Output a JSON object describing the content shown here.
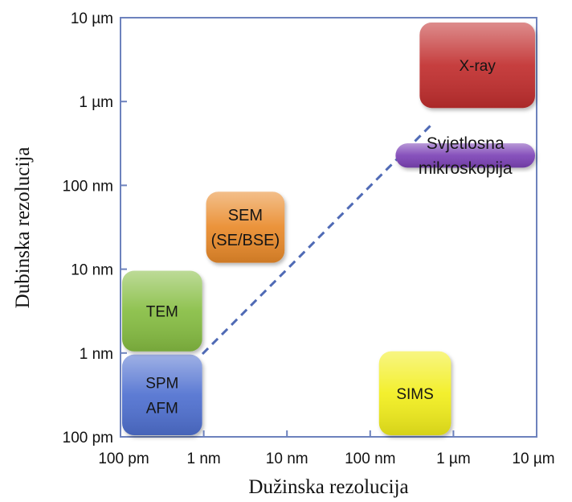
{
  "axes": {
    "x_label": "Dužinska rezolucija",
    "y_label": "Dubinska rezolucija",
    "x_ticks": [
      "100 pm",
      "1 nm",
      "10 nm",
      "100 nm",
      "1 µm",
      "10 µm"
    ],
    "y_ticks": [
      "100 pm",
      "1 nm",
      "10 nm",
      "100 nm",
      "1 µm",
      "10 µm"
    ],
    "scale": "log"
  },
  "techniques": [
    {
      "id": "spm-afm",
      "lines": [
        "SPM",
        "AFM"
      ],
      "x_range": [
        "100 pm",
        "1 nm"
      ],
      "y_range": [
        "100 pm",
        "1 nm"
      ],
      "color": "#4f6fd0"
    },
    {
      "id": "tem",
      "lines": [
        "TEM"
      ],
      "x_range": [
        "100 pm",
        "1 nm"
      ],
      "y_range": [
        "1 nm",
        "10 nm"
      ],
      "color": "#86bd42"
    },
    {
      "id": "sem",
      "lines": [
        "SEM",
        "(SE/BSE)"
      ],
      "x_range": [
        "1 nm",
        "10 nm"
      ],
      "y_range": [
        "10 nm",
        "100 nm"
      ],
      "color": "#e98a2c"
    },
    {
      "id": "sims",
      "lines": [
        "SIMS"
      ],
      "x_range": [
        "100 nm",
        "1 µm"
      ],
      "y_range": [
        "100 pm",
        "1 nm"
      ],
      "color": "#f2ee1c"
    },
    {
      "id": "svjetlosna-mikroskopija",
      "lines": [
        "Svjetlosna",
        "mikroskopija"
      ],
      "x_range": [
        "1 µm",
        "10 µm"
      ],
      "y_range": [
        "100 nm",
        "1 µm"
      ],
      "color": "#7b42b6"
    },
    {
      "id": "x-ray",
      "lines": [
        "X-ray"
      ],
      "x_range": [
        "1 µm",
        "10 µm"
      ],
      "y_range": [
        "1 µm",
        "10 µm"
      ],
      "color": "#c12e2e"
    }
  ],
  "diagonal_line": {
    "style": "dashed",
    "from": [
      "1 nm",
      "1 nm"
    ],
    "to": [
      "1 µm",
      "1 µm"
    ],
    "color": "#4f6ab5"
  },
  "colors": {
    "frame": "#6d82bd",
    "background": "#ffffff"
  }
}
